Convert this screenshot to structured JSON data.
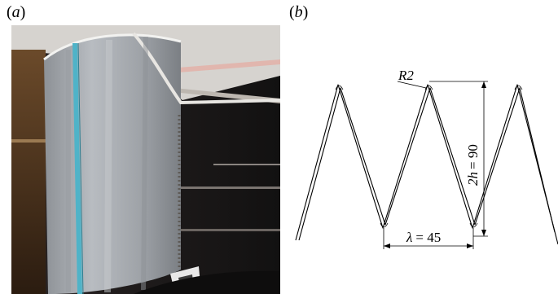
{
  "panel_a": {
    "label_open": "(",
    "label_letter": "a",
    "label_close": ")"
  },
  "panel_b": {
    "label_open": "(",
    "label_letter": "b",
    "label_close": ")",
    "radius_label": "R2",
    "height_label_var": "2h",
    "height_label_value": "= 90",
    "wavelength_label_var": "λ",
    "wavelength_label_value": "= 45"
  },
  "colors": {
    "line": "#000000",
    "metal": "#a9adb3",
    "teal_strip": "#4fb3c8",
    "dark_background": "#1c1a1a",
    "ceiling": "#d6d3cf"
  }
}
